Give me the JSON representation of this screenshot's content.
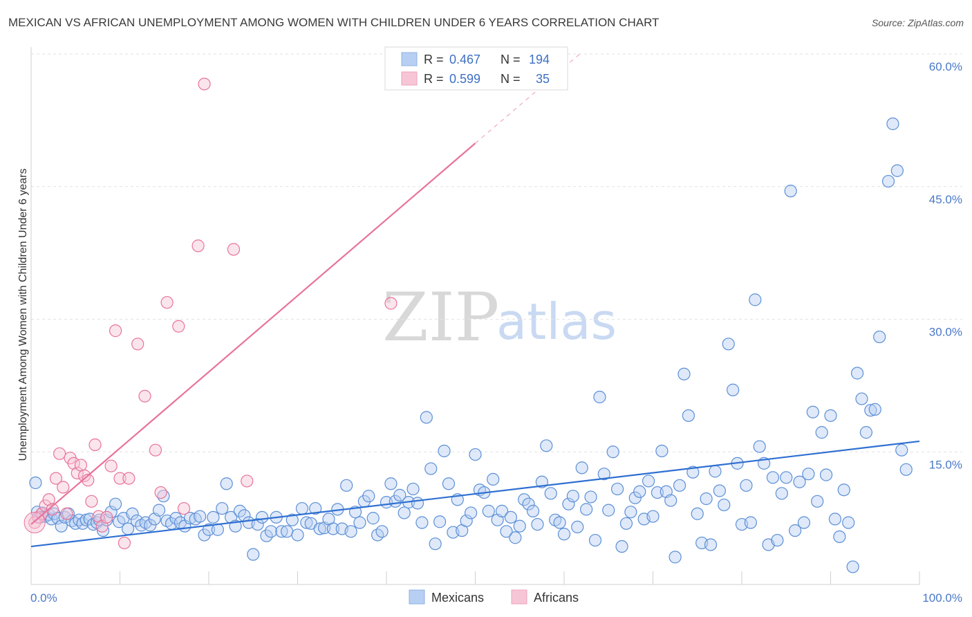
{
  "title": "MEXICAN VS AFRICAN UNEMPLOYMENT AMONG WOMEN WITH CHILDREN UNDER 6 YEARS CORRELATION CHART",
  "source": "Source: ZipAtlas.com",
  "watermark": {
    "zip": "ZIP",
    "atlas": "atlas"
  },
  "legend": {
    "rows": [
      {
        "r_label": "R =",
        "r_value": "0.467",
        "n_label": "N =",
        "n_value": "194",
        "color": "#a9c6f0"
      },
      {
        "r_label": "R =",
        "r_value": "0.599",
        "n_label": "N =",
        "n_value": "35",
        "color": "#f6b8cb"
      }
    ]
  },
  "bottom_legend": [
    {
      "label": "Mexicans",
      "color": "#a9c6f0"
    },
    {
      "label": "Africans",
      "color": "#f6b8cb"
    }
  ],
  "chart_data": {
    "type": "scatter",
    "title": "MEXICAN VS AFRICAN UNEMPLOYMENT AMONG WOMEN WITH CHILDREN UNDER 6 YEARS CORRELATION CHART",
    "xlabel": "",
    "ylabel": "Unemployment Among Women with Children Under 6 years",
    "xlim": [
      0,
      100
    ],
    "ylim": [
      0,
      60
    ],
    "x_tick_labels": [
      "0.0%",
      "100.0%"
    ],
    "y_ticks": [
      15,
      30,
      45,
      60
    ],
    "y_tick_labels": [
      "15.0%",
      "30.0%",
      "45.0%",
      "60.0%"
    ],
    "grid": true,
    "series": [
      {
        "name": "Mexicans",
        "color": "#5b8fd6",
        "fill": "#b7cff2",
        "trend": {
          "x": [
            0,
            100
          ],
          "y": [
            4.3,
            16.2
          ]
        },
        "points": [
          [
            0.5,
            11.5
          ],
          [
            0.7,
            8.2
          ],
          [
            1.0,
            7.6
          ],
          [
            1.3,
            8.1
          ],
          [
            1.6,
            7.7
          ],
          [
            2.0,
            7.9
          ],
          [
            2.3,
            7.4
          ],
          [
            2.6,
            8.0
          ],
          [
            3.0,
            7.5
          ],
          [
            3.4,
            6.6
          ],
          [
            3.8,
            7.6
          ],
          [
            4.2,
            8.0
          ],
          [
            4.6,
            7.2
          ],
          [
            5.0,
            6.9
          ],
          [
            5.4,
            7.3
          ],
          [
            5.8,
            6.9
          ],
          [
            6.2,
            7.3
          ],
          [
            6.6,
            7.4
          ],
          [
            7.0,
            6.8
          ],
          [
            7.4,
            7.0
          ],
          [
            7.7,
            7.3
          ],
          [
            8.1,
            6.1
          ],
          [
            8.5,
            7.3
          ],
          [
            9.0,
            8.2
          ],
          [
            9.5,
            9.1
          ],
          [
            9.9,
            7.1
          ],
          [
            10.4,
            7.5
          ],
          [
            10.9,
            6.3
          ],
          [
            11.4,
            8.0
          ],
          [
            11.9,
            7.2
          ],
          [
            12.4,
            6.7
          ],
          [
            12.9,
            7.0
          ],
          [
            13.4,
            6.7
          ],
          [
            13.9,
            7.4
          ],
          [
            14.4,
            8.4
          ],
          [
            14.9,
            10.0
          ],
          [
            15.3,
            7.2
          ],
          [
            15.8,
            6.9
          ],
          [
            16.3,
            7.5
          ],
          [
            16.8,
            7.0
          ],
          [
            17.3,
            6.6
          ],
          [
            17.9,
            7.5
          ],
          [
            18.5,
            7.4
          ],
          [
            19.0,
            7.7
          ],
          [
            19.5,
            5.6
          ],
          [
            20.0,
            6.2
          ],
          [
            20.5,
            7.6
          ],
          [
            21.0,
            6.2
          ],
          [
            21.5,
            8.6
          ],
          [
            22.0,
            11.4
          ],
          [
            22.5,
            7.6
          ],
          [
            23.0,
            6.6
          ],
          [
            23.5,
            8.3
          ],
          [
            24.0,
            7.8
          ],
          [
            24.5,
            7.0
          ],
          [
            25.0,
            3.4
          ],
          [
            25.5,
            6.8
          ],
          [
            26.0,
            7.6
          ],
          [
            26.5,
            5.5
          ],
          [
            27.0,
            6.0
          ],
          [
            27.6,
            7.6
          ],
          [
            28.2,
            6.0
          ],
          [
            28.8,
            6.0
          ],
          [
            29.4,
            7.3
          ],
          [
            30.0,
            5.6
          ],
          [
            30.5,
            8.6
          ],
          [
            31.0,
            7.0
          ],
          [
            31.5,
            6.9
          ],
          [
            32.0,
            8.6
          ],
          [
            32.5,
            6.3
          ],
          [
            33.0,
            6.4
          ],
          [
            33.5,
            7.4
          ],
          [
            34.0,
            6.3
          ],
          [
            34.5,
            8.5
          ],
          [
            35.0,
            6.3
          ],
          [
            35.5,
            11.2
          ],
          [
            36.0,
            6.0
          ],
          [
            36.5,
            8.2
          ],
          [
            37.0,
            7.0
          ],
          [
            37.5,
            9.4
          ],
          [
            38.0,
            10.0
          ],
          [
            38.5,
            7.5
          ],
          [
            39.0,
            5.6
          ],
          [
            39.5,
            6.0
          ],
          [
            40.0,
            9.3
          ],
          [
            40.5,
            11.4
          ],
          [
            41.0,
            9.4
          ],
          [
            41.5,
            10.1
          ],
          [
            42.0,
            8.1
          ],
          [
            42.5,
            9.3
          ],
          [
            43.0,
            10.8
          ],
          [
            43.5,
            9.2
          ],
          [
            44.0,
            7.0
          ],
          [
            44.5,
            18.9
          ],
          [
            45.0,
            13.1
          ],
          [
            45.5,
            4.6
          ],
          [
            46.0,
            7.1
          ],
          [
            46.5,
            15.1
          ],
          [
            47.0,
            11.4
          ],
          [
            47.5,
            5.9
          ],
          [
            48.0,
            9.6
          ],
          [
            48.5,
            6.1
          ],
          [
            49.0,
            7.2
          ],
          [
            49.5,
            8.1
          ],
          [
            50.0,
            14.7
          ],
          [
            50.5,
            10.7
          ],
          [
            51.0,
            10.4
          ],
          [
            51.5,
            8.3
          ],
          [
            52.0,
            11.9
          ],
          [
            52.5,
            7.3
          ],
          [
            53.0,
            8.3
          ],
          [
            53.5,
            6.0
          ],
          [
            54.0,
            7.6
          ],
          [
            54.5,
            5.3
          ],
          [
            55.0,
            6.6
          ],
          [
            55.5,
            9.6
          ],
          [
            56.0,
            9.1
          ],
          [
            56.5,
            8.3
          ],
          [
            57.0,
            6.8
          ],
          [
            57.5,
            11.6
          ],
          [
            58.0,
            15.7
          ],
          [
            58.5,
            10.3
          ],
          [
            59.0,
            7.3
          ],
          [
            59.5,
            7.0
          ],
          [
            60.0,
            5.7
          ],
          [
            60.5,
            9.1
          ],
          [
            61.0,
            10.0
          ],
          [
            61.5,
            6.5
          ],
          [
            62.0,
            13.2
          ],
          [
            62.5,
            8.5
          ],
          [
            63.0,
            9.9
          ],
          [
            63.5,
            5.0
          ],
          [
            64.0,
            21.2
          ],
          [
            64.5,
            12.5
          ],
          [
            65.0,
            8.4
          ],
          [
            65.5,
            15.0
          ],
          [
            66.0,
            10.8
          ],
          [
            66.5,
            4.3
          ],
          [
            67.0,
            6.9
          ],
          [
            67.5,
            8.2
          ],
          [
            68.0,
            9.8
          ],
          [
            68.5,
            10.5
          ],
          [
            69.0,
            7.4
          ],
          [
            69.5,
            11.7
          ],
          [
            70.0,
            7.7
          ],
          [
            70.5,
            10.4
          ],
          [
            71.0,
            15.1
          ],
          [
            71.5,
            10.5
          ],
          [
            72.0,
            9.5
          ],
          [
            72.5,
            3.1
          ],
          [
            73.0,
            11.2
          ],
          [
            73.5,
            23.8
          ],
          [
            74.0,
            19.1
          ],
          [
            74.5,
            12.7
          ],
          [
            75.0,
            8.0
          ],
          [
            75.5,
            4.7
          ],
          [
            76.0,
            9.7
          ],
          [
            76.5,
            4.5
          ],
          [
            77.0,
            12.8
          ],
          [
            77.5,
            10.6
          ],
          [
            78.0,
            9.0
          ],
          [
            78.5,
            27.2
          ],
          [
            79.0,
            22.0
          ],
          [
            79.5,
            13.7
          ],
          [
            80.0,
            6.8
          ],
          [
            80.5,
            11.2
          ],
          [
            81.0,
            7.0
          ],
          [
            81.5,
            32.2
          ],
          [
            82.0,
            15.6
          ],
          [
            82.5,
            13.7
          ],
          [
            83.0,
            4.5
          ],
          [
            83.5,
            12.1
          ],
          [
            84.0,
            5.0
          ],
          [
            84.5,
            10.3
          ],
          [
            85.0,
            12.1
          ],
          [
            85.5,
            44.5
          ],
          [
            86.0,
            6.1
          ],
          [
            86.5,
            11.6
          ],
          [
            87.0,
            7.0
          ],
          [
            87.5,
            12.5
          ],
          [
            88.0,
            19.5
          ],
          [
            88.5,
            9.4
          ],
          [
            89.0,
            17.2
          ],
          [
            89.5,
            12.4
          ],
          [
            90.0,
            19.1
          ],
          [
            90.5,
            7.4
          ],
          [
            91.0,
            5.4
          ],
          [
            91.5,
            10.7
          ],
          [
            92.0,
            7.0
          ],
          [
            92.5,
            2.0
          ],
          [
            93.0,
            23.9
          ],
          [
            93.5,
            21.0
          ],
          [
            94.0,
            17.2
          ],
          [
            94.5,
            19.7
          ],
          [
            95.0,
            19.8
          ],
          [
            95.5,
            28.0
          ],
          [
            96.5,
            45.6
          ],
          [
            97.0,
            52.1
          ],
          [
            97.5,
            46.8
          ],
          [
            98.0,
            15.2
          ],
          [
            98.5,
            13.0
          ]
        ]
      },
      {
        "name": "Africans",
        "color": "#e8729a",
        "fill": "#f6c6d6",
        "trend": {
          "x": [
            0,
            50
          ],
          "y": [
            6.8,
            49.9
          ]
        },
        "trend_dashed": {
          "x": [
            50,
            62
          ],
          "y": [
            49.9,
            60.2
          ]
        },
        "points": [
          [
            0.4,
            7.0
          ],
          [
            0.8,
            7.6
          ],
          [
            1.2,
            8.0
          ],
          [
            1.6,
            8.9
          ],
          [
            2.0,
            9.6
          ],
          [
            2.4,
            8.5
          ],
          [
            2.8,
            12.0
          ],
          [
            3.2,
            14.8
          ],
          [
            3.6,
            11.0
          ],
          [
            4.0,
            8.0
          ],
          [
            4.4,
            14.3
          ],
          [
            4.8,
            13.7
          ],
          [
            5.2,
            12.6
          ],
          [
            5.6,
            13.5
          ],
          [
            6.0,
            12.3
          ],
          [
            6.4,
            11.8
          ],
          [
            6.8,
            9.4
          ],
          [
            7.2,
            15.8
          ],
          [
            7.6,
            7.7
          ],
          [
            8.0,
            6.6
          ],
          [
            8.5,
            7.6
          ],
          [
            9.0,
            13.4
          ],
          [
            9.5,
            28.7
          ],
          [
            10.0,
            12.0
          ],
          [
            10.5,
            4.7
          ],
          [
            11.0,
            12.0
          ],
          [
            12.0,
            27.2
          ],
          [
            12.8,
            21.3
          ],
          [
            14.0,
            15.2
          ],
          [
            14.6,
            10.4
          ],
          [
            15.3,
            31.9
          ],
          [
            16.6,
            29.2
          ],
          [
            17.2,
            8.6
          ],
          [
            18.8,
            38.3
          ],
          [
            19.5,
            56.6
          ],
          [
            22.8,
            37.9
          ],
          [
            24.3,
            11.7
          ],
          [
            40.5,
            31.8
          ]
        ]
      }
    ]
  }
}
